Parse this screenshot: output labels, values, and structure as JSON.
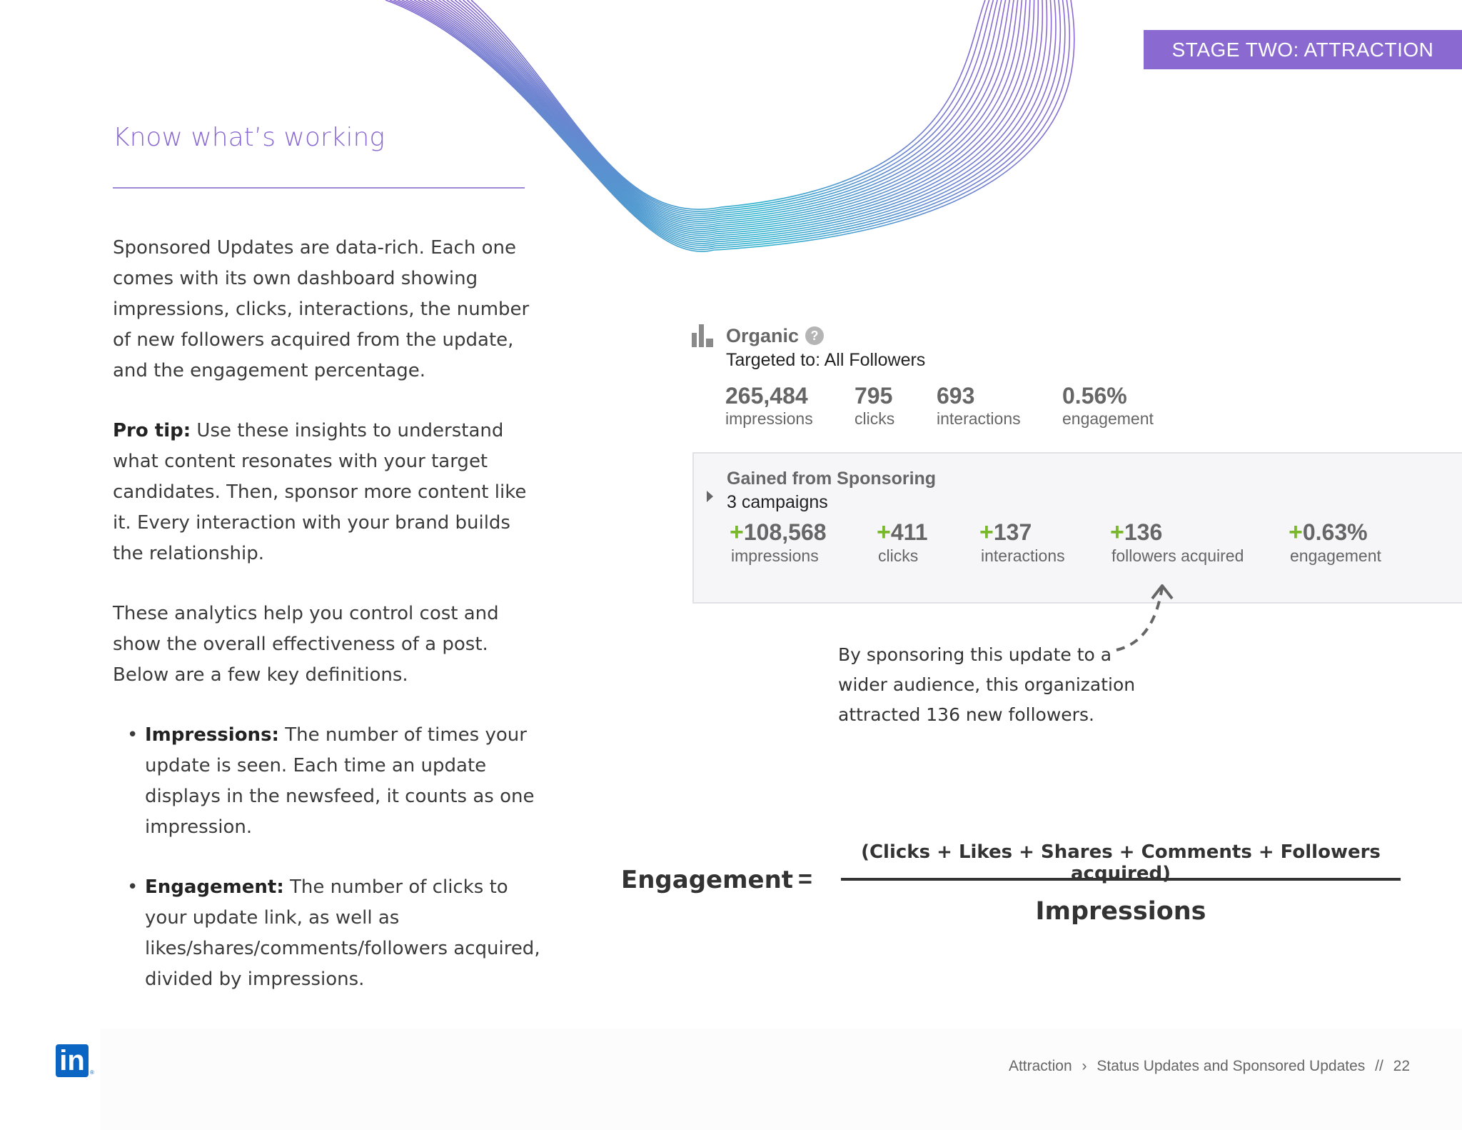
{
  "stage_banner": "STAGE TWO: ATTRACTION",
  "heading": "Know what’s working",
  "body": {
    "p1": "Sponsored Updates are data-rich. Each one comes with its own dashboard showing impressions, clicks, interactions, the number of new followers acquired from the update, and the engagement percentage.",
    "p2_label": "Pro tip:",
    "p2_text": " Use these insights to understand what content resonates with your target candidates. Then, sponsor more content like it. Every interaction with your brand builds the relationship.",
    "p3": "These analytics help you control cost and show the overall effectiveness of a post. Below are a few key definitions.",
    "bullets": [
      {
        "label": "Impressions:",
        "text": " The number of times your update is seen. Each time an update displays in the newsfeed, it counts as one impression."
      },
      {
        "label": "Engagement:",
        "text": " The number of clicks to your update link, as well as likes/shares/comments/followers acquired, divided by impressions."
      }
    ]
  },
  "organic": {
    "title": "Organic",
    "help": "?",
    "targeted": "Targeted to: All Followers",
    "metrics": [
      {
        "value": "265,484",
        "label": "impressions"
      },
      {
        "value": "795",
        "label": "clicks"
      },
      {
        "value": "693",
        "label": "interactions"
      },
      {
        "value": "0.56%",
        "label": "engagement"
      }
    ]
  },
  "sponsored": {
    "title": "Gained from Sponsoring",
    "subtitle": "3 campaigns",
    "metrics": [
      {
        "plus": "+",
        "value": "108,568",
        "label": "impressions"
      },
      {
        "plus": "+",
        "value": "411",
        "label": "clicks"
      },
      {
        "plus": "+",
        "value": "137",
        "label": "interactions"
      },
      {
        "plus": "+",
        "value": "136",
        "label": "followers acquired"
      },
      {
        "plus": "+",
        "value": "0.63%",
        "label": "engagement"
      }
    ]
  },
  "callout": "By sponsoring this update to a wider audience, this organization attracted 136 new followers.",
  "equation": {
    "lhs": "Engagement",
    "sign": "=",
    "numerator": "(Clicks + Likes + Shares + Comments + Followers acquired)",
    "denominator": "Impressions"
  },
  "footer": {
    "logo": "in",
    "registered": "®",
    "crumb1": "Attraction",
    "sep": "›",
    "crumb2": "Status Updates and Sponsored Updates",
    "page_sep": "//",
    "page": "22"
  },
  "colors": {
    "accent": "#8a6ad0",
    "green": "#78b82a",
    "linkedin": "#0a66c2"
  }
}
